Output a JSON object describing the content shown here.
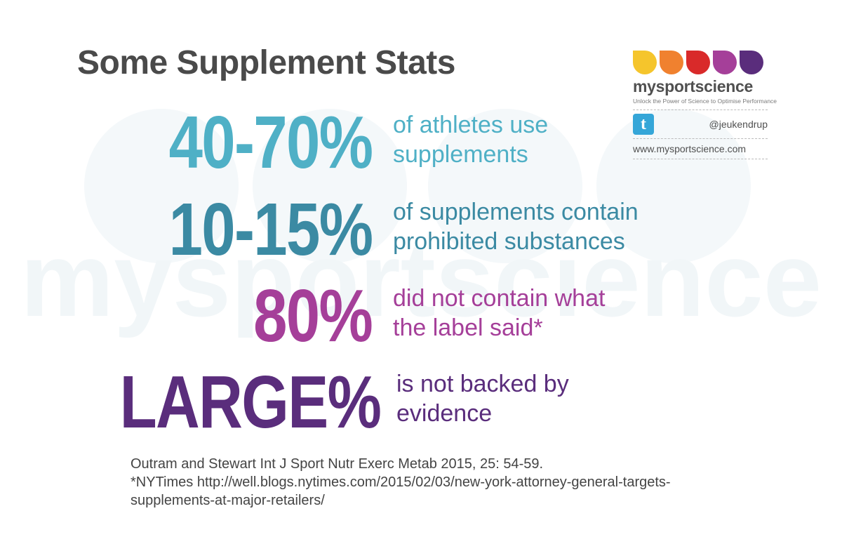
{
  "title": "Some Supplement Stats",
  "stats": [
    {
      "value": "40-70%",
      "line1": "of athletes use",
      "line2": "supplements"
    },
    {
      "value": "10-15%",
      "line1": "of supplements contain",
      "line2": "prohibited substances"
    },
    {
      "value": "80%",
      "line1": "did not contain what",
      "line2": "the label said*"
    },
    {
      "value": "LARGE%",
      "line1": "is not backed by",
      "line2": "evidence"
    }
  ],
  "logo": {
    "brand": "mysportscience",
    "tagline": "Unlock the Power of Science to Optimise Performance",
    "twitter_glyph": "t",
    "twitter_handle": "@jeukendrup",
    "website": "www.mysportscience.com",
    "drop_colors": [
      "#f5c52c",
      "#f0812f",
      "#d92a2a",
      "#a53f99",
      "#5a2d7c"
    ]
  },
  "references": {
    "line1": "Outram and Stewart Int J Sport Nutr Exerc Metab 2015, 25: 54-59.",
    "line2": "*NYTimes  http://well.blogs.nytimes.com/2015/02/03/new-york-attorney-general-targets-",
    "line3": "supplements-at-major-retailers/"
  },
  "watermark": "mysportscience"
}
